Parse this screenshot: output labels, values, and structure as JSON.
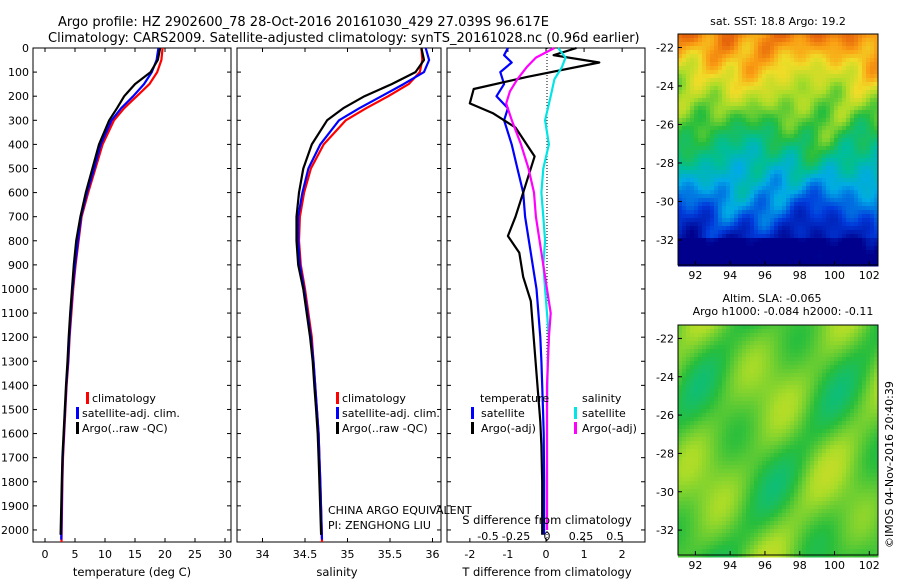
{
  "figure": {
    "title_line1": "Argo profile: HZ 2902600_78 28-Oct-2016 20161030_429 27.039S 96.617E",
    "title_line2": "Climatology: CARS2009. Satellite-adjusted climatology: synTS_20161028.nc (0.96d earlier)",
    "credit": "©IMOS 04-Nov-2016 20:40:39",
    "institution_line1": "CHINA ARGO EQUIVALENT",
    "institution_line2": "PI: ZENGHONG LIU"
  },
  "colors": {
    "climatology": "#ff0000",
    "satellite": "#0000ff",
    "argo": "#000000",
    "sal_satellite": "#00e5e5",
    "sal_argo": "#ff00ff"
  },
  "legend": {
    "climatology": "climatology",
    "satellite_adj": "satellite-adj. clim.",
    "argo_raw": "Argo(..raw -QC)",
    "temperature_header": "temperature",
    "salinity_header": "salinity",
    "satellite": "satellite",
    "argo_adj": "Argo(-adj)"
  },
  "chart_data": [
    {
      "type": "line",
      "panel": "temperature",
      "xlabel": "temperature (deg C)",
      "xlim": [
        -2,
        31
      ],
      "xticks": [
        "0",
        "5",
        "10",
        "15",
        "20",
        "25",
        "30"
      ],
      "ylim": [
        2050,
        0
      ],
      "yticks": [
        "0",
        "100",
        "200",
        "300",
        "400",
        "500",
        "600",
        "700",
        "800",
        "900",
        "1000",
        "1100",
        "1200",
        "1300",
        "1400",
        "1500",
        "1600",
        "1700",
        "1800",
        "1900",
        "2000"
      ],
      "series": [
        {
          "name": "climatology",
          "color": "#ff0000",
          "x": [
            19.6,
            19.4,
            18.7,
            17.4,
            15.3,
            13.2,
            11.5,
            9.6,
            8.4,
            7.2,
            6.1,
            5.6,
            5.1,
            4.7,
            4.4,
            4.1,
            3.9,
            3.6,
            3.4,
            3.2,
            3.0,
            2.9,
            2.75
          ],
          "y": [
            0,
            50,
            100,
            150,
            200,
            250,
            300,
            400,
            500,
            600,
            700,
            800,
            900,
            1000,
            1100,
            1200,
            1300,
            1400,
            1500,
            1600,
            1700,
            1800,
            2050
          ]
        },
        {
          "name": "satellite-adj. clim.",
          "color": "#0000ff",
          "x": [
            18.9,
            18.6,
            17.8,
            16.5,
            14.7,
            12.7,
            11.1,
            9.3,
            8.2,
            7.0,
            6.0,
            5.5,
            5.0,
            4.6,
            4.3,
            4.05,
            3.85,
            3.55,
            3.35,
            3.15,
            2.95,
            2.85,
            2.7
          ],
          "y": [
            0,
            50,
            100,
            150,
            200,
            250,
            300,
            400,
            500,
            600,
            700,
            800,
            900,
            1000,
            1100,
            1200,
            1300,
            1400,
            1500,
            1600,
            1700,
            1800,
            2040
          ]
        },
        {
          "name": "Argo(..raw -QC)",
          "color": "#000000",
          "x": [
            19.2,
            18.8,
            17.6,
            15.0,
            13.2,
            12.0,
            10.7,
            9.0,
            7.9,
            6.8,
            5.9,
            5.2,
            4.8,
            4.5,
            4.2,
            3.95,
            3.75,
            3.5,
            3.3,
            3.1,
            2.9,
            2.8,
            2.6
          ],
          "y": [
            0,
            50,
            100,
            150,
            200,
            250,
            300,
            400,
            500,
            600,
            700,
            800,
            900,
            1000,
            1100,
            1200,
            1300,
            1400,
            1500,
            1600,
            1700,
            1800,
            2020
          ]
        }
      ]
    },
    {
      "type": "line",
      "panel": "salinity",
      "xlabel": "salinity",
      "xlim": [
        33.7,
        36.1
      ],
      "xticks": [
        "34",
        "34.5",
        "35",
        "35.5",
        "36"
      ],
      "ylim": [
        2050,
        0
      ],
      "series": [
        {
          "name": "climatology",
          "color": "#ff0000",
          "x": [
            35.87,
            35.88,
            35.85,
            35.72,
            35.48,
            35.22,
            34.98,
            34.72,
            34.57,
            34.49,
            34.44,
            34.43,
            34.45,
            34.5,
            34.54,
            34.58,
            34.6,
            34.62,
            34.64,
            34.66,
            34.67,
            34.68,
            34.7
          ],
          "y": [
            0,
            50,
            100,
            150,
            200,
            250,
            300,
            400,
            500,
            600,
            700,
            800,
            900,
            1000,
            1100,
            1200,
            1300,
            1400,
            1500,
            1600,
            1700,
            1800,
            2050
          ]
        },
        {
          "name": "satellite-adj. clim.",
          "color": "#0000ff",
          "x": [
            35.92,
            35.96,
            35.9,
            35.66,
            35.4,
            35.14,
            34.9,
            34.68,
            34.54,
            34.47,
            34.42,
            34.42,
            34.44,
            34.49,
            34.53,
            34.57,
            34.6,
            34.62,
            34.64,
            34.66,
            34.67,
            34.68,
            34.7
          ],
          "y": [
            0,
            50,
            100,
            150,
            200,
            250,
            300,
            400,
            500,
            600,
            700,
            800,
            900,
            1000,
            1100,
            1200,
            1300,
            1400,
            1500,
            1600,
            1700,
            1800,
            2040
          ]
        },
        {
          "name": "Argo(..raw -QC)",
          "color": "#000000",
          "x": [
            35.87,
            35.9,
            35.8,
            35.52,
            35.2,
            34.95,
            34.76,
            34.58,
            34.48,
            34.43,
            34.4,
            34.4,
            34.42,
            34.48,
            34.52,
            34.56,
            34.59,
            34.61,
            34.63,
            34.65,
            34.66,
            34.67,
            34.69
          ],
          "y": [
            0,
            50,
            100,
            150,
            200,
            250,
            300,
            400,
            500,
            600,
            700,
            800,
            900,
            1000,
            1100,
            1200,
            1300,
            1400,
            1500,
            1600,
            1700,
            1800,
            2020
          ]
        }
      ]
    },
    {
      "type": "line",
      "panel": "differences",
      "xlabel": "T difference from climatology",
      "xlabel_top": "S difference from climatology",
      "xlim": [
        -2.6,
        2.6
      ],
      "xticks": [
        "-2",
        "-1",
        "0",
        "1",
        "2"
      ],
      "xticks_top": [
        "-0.5",
        "-0.25",
        "0",
        "0.25",
        "0.5"
      ],
      "ylim": [
        2050,
        0
      ],
      "series": [
        {
          "name": "temperature satellite",
          "color": "#0000ff",
          "x": [
            -1.0,
            -1.1,
            -0.9,
            -1.2,
            -1.1,
            -1.3,
            -1.0,
            -1.1,
            -0.9,
            -0.75,
            -0.6,
            -0.55,
            -0.45,
            -0.35,
            -0.25,
            -0.2,
            -0.15,
            -0.12,
            -0.1,
            -0.08,
            -0.06,
            -0.05,
            -0.05
          ],
          "y": [
            0,
            30,
            60,
            100,
            150,
            200,
            250,
            300,
            400,
            500,
            600,
            700,
            800,
            900,
            1000,
            1100,
            1200,
            1300,
            1400,
            1500,
            1600,
            1800,
            2020
          ]
        },
        {
          "name": "temperature Argo(-adj)",
          "color": "#000000",
          "x": [
            0.8,
            0.2,
            1.4,
            -0.5,
            -1.9,
            -2.0,
            -1.4,
            -0.8,
            -0.3,
            -0.6,
            -0.8,
            -1.0,
            -0.7,
            -0.6,
            -0.4,
            -0.35,
            -0.3,
            -0.25,
            -0.2,
            -0.15,
            -0.12,
            -0.1,
            -0.1
          ],
          "y": [
            0,
            30,
            60,
            120,
            170,
            230,
            270,
            330,
            450,
            600,
            700,
            780,
            850,
            950,
            1050,
            1150,
            1250,
            1350,
            1450,
            1550,
            1650,
            1800,
            2020
          ]
        },
        {
          "name": "salinity satellite",
          "color": "#00e5e5",
          "x": [
            0.3,
            0.5,
            0.4,
            0.2,
            0.1,
            -0.05,
            0.05,
            -0.1,
            -0.15,
            -0.1,
            -0.05,
            -0.1,
            -0.05,
            0.0,
            0.05,
            0.02,
            0.0,
            0.0,
            0.0
          ],
          "y": [
            0,
            40,
            80,
            130,
            200,
            300,
            400,
            500,
            600,
            700,
            800,
            900,
            1000,
            1100,
            1200,
            1300,
            1500,
            1700,
            2000
          ]
        },
        {
          "name": "salinity Argo(-adj)",
          "color": "#ff00ff",
          "x": [
            0.2,
            -0.3,
            -0.55,
            -0.8,
            -1.0,
            -1.1,
            -0.95,
            -0.7,
            -0.5,
            -0.35,
            -0.3,
            -0.2,
            -0.1,
            0.0,
            0.1,
            0.05,
            0.0,
            0.0,
            0.0
          ],
          "y": [
            0,
            40,
            80,
            130,
            180,
            230,
            300,
            400,
            500,
            600,
            700,
            800,
            900,
            1000,
            1100,
            1200,
            1400,
            1700,
            2000
          ]
        }
      ]
    },
    {
      "type": "heatmap",
      "panel": "sst_map",
      "title": "sat. SST: 18.8  Argo: 19.2",
      "xticks": [
        "92",
        "94",
        "96",
        "98",
        "100",
        "102"
      ],
      "yticks": [
        "-22",
        "-24",
        "-26",
        "-28",
        "-30",
        "-32"
      ],
      "xlim": [
        91,
        102.5
      ],
      "ylim": [
        -33.3,
        -21.3
      ]
    },
    {
      "type": "heatmap",
      "panel": "sla_map",
      "title": "Altim. SLA: -0.065",
      "subtitle": "Argo h1000: -0.084  h2000: -0.11",
      "xticks": [
        "92",
        "94",
        "96",
        "98",
        "100",
        "102"
      ],
      "yticks": [
        "-22",
        "-24",
        "-26",
        "-28",
        "-30",
        "-32"
      ],
      "xlim": [
        91,
        102.5
      ],
      "ylim": [
        -33.3,
        -21.3
      ]
    }
  ]
}
